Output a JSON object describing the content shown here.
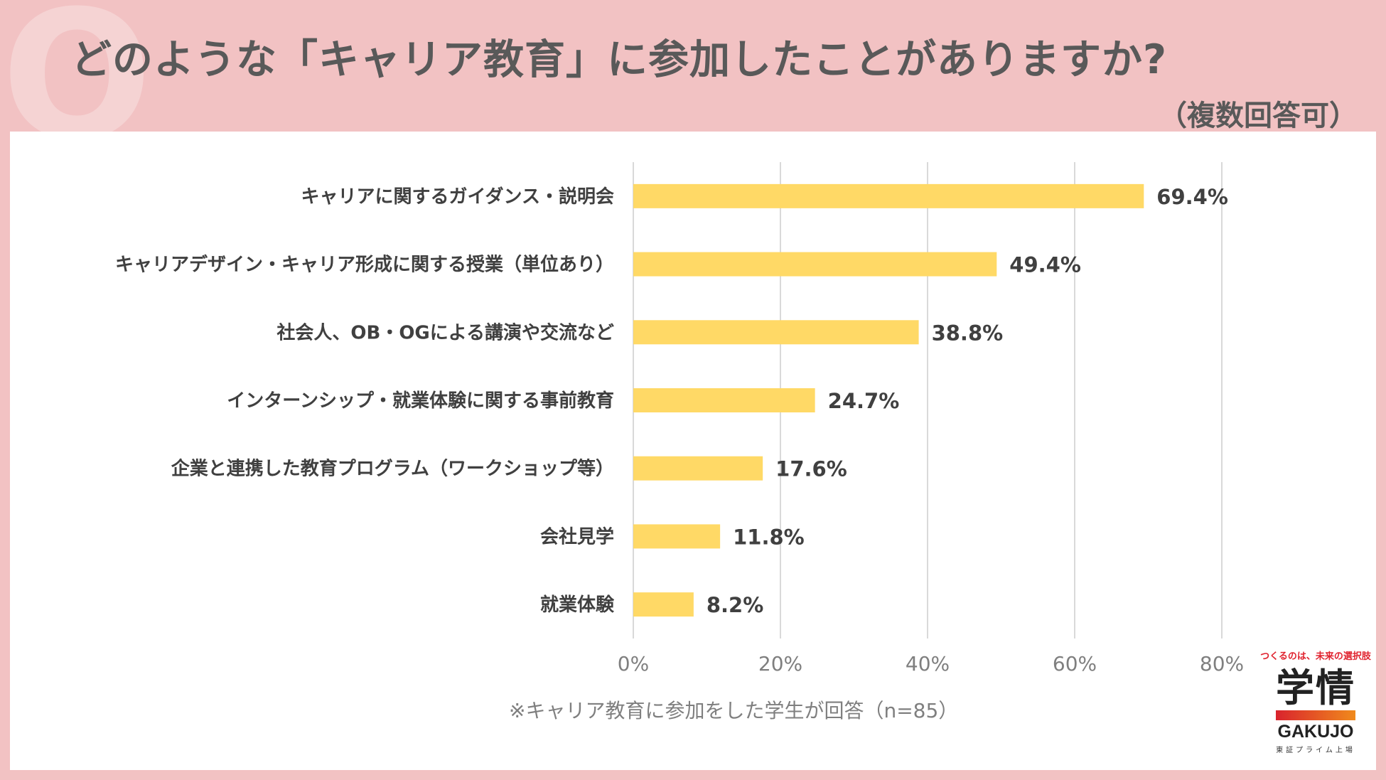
{
  "header": {
    "q_letter": "Q",
    "title": "どのような「キャリア教育」に参加したことがありますか?",
    "subtitle": "（複数回答可）"
  },
  "chart_data": {
    "type": "bar",
    "orientation": "horizontal",
    "categories": [
      "キャリアに関するガイダンス・説明会",
      "キャリアデザイン・キャリア形成に関する授業（単位あり）",
      "社会人、OB・OGによる講演や交流など",
      "インターンシップ・就業体験に関する事前教育",
      "企業と連携した教育プログラム（ワークショップ等）",
      "会社見学",
      "就業体験"
    ],
    "values": [
      69.4,
      49.4,
      38.8,
      24.7,
      17.6,
      11.8,
      8.2
    ],
    "value_labels": [
      "69.4%",
      "49.4%",
      "38.8%",
      "24.7%",
      "17.6%",
      "11.8%",
      "8.2%"
    ],
    "xlim": [
      0,
      80
    ],
    "xticks": [
      0,
      20,
      40,
      60,
      80
    ],
    "xtick_labels": [
      "0%",
      "20%",
      "40%",
      "60%",
      "80%"
    ],
    "grid": true,
    "bar_color": "#ffd966",
    "grid_color": "#d9d9d9"
  },
  "footnote": "※キャリア教育に参加をした学生が回答（n=85）",
  "logo": {
    "tagline": "つくるのは、未来の選択肢",
    "kanji": "学情",
    "name": "GAKUJO",
    "sub": "東証プライム上場"
  }
}
